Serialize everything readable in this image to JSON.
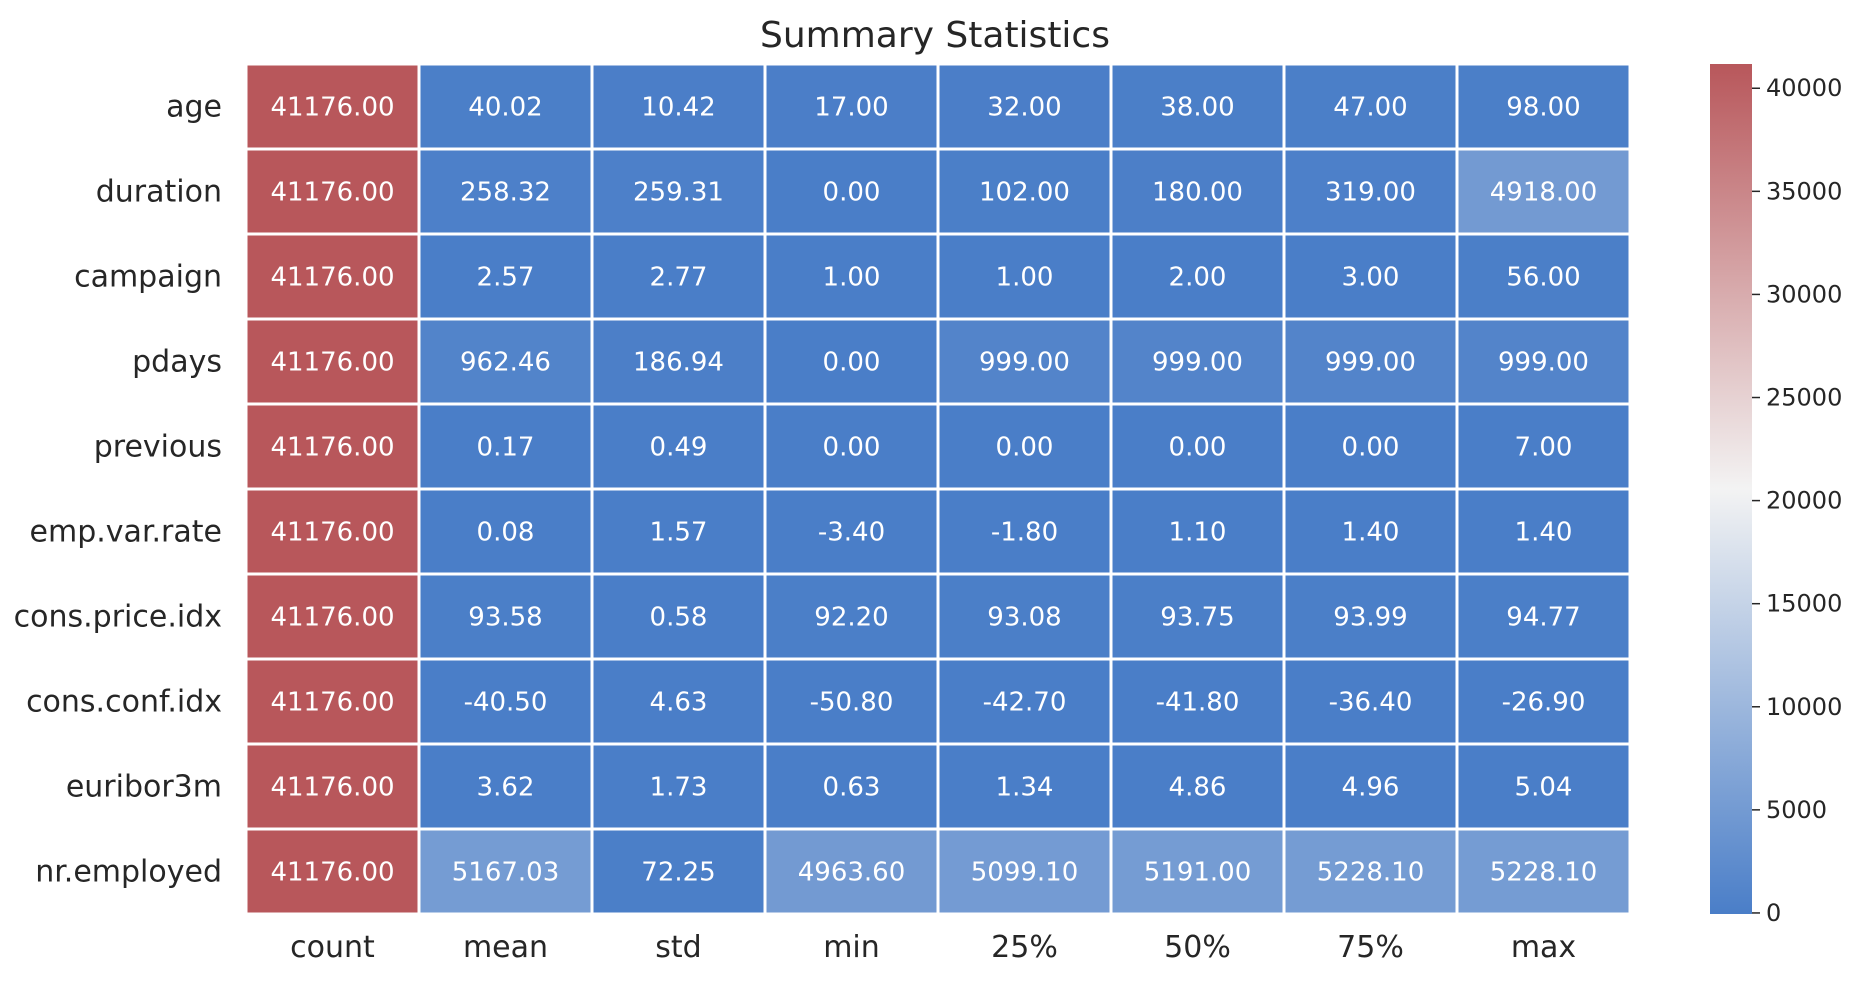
{
  "chart_data": {
    "type": "heatmap",
    "title": "Summary Statistics",
    "xlabel": "",
    "ylabel": "",
    "columns": [
      "count",
      "mean",
      "std",
      "min",
      "25%",
      "50%",
      "75%",
      "max"
    ],
    "rows": [
      "age",
      "duration",
      "campaign",
      "pdays",
      "previous",
      "emp.var.rate",
      "cons.price.idx",
      "cons.conf.idx",
      "euribor3m",
      "nr.employed"
    ],
    "values": [
      [
        41176.0,
        40.02,
        10.42,
        17.0,
        32.0,
        38.0,
        47.0,
        98.0
      ],
      [
        41176.0,
        258.32,
        259.31,
        0.0,
        102.0,
        180.0,
        319.0,
        4918.0
      ],
      [
        41176.0,
        2.57,
        2.77,
        1.0,
        1.0,
        2.0,
        3.0,
        56.0
      ],
      [
        41176.0,
        962.46,
        186.94,
        0.0,
        999.0,
        999.0,
        999.0,
        999.0
      ],
      [
        41176.0,
        0.17,
        0.49,
        0.0,
        0.0,
        0.0,
        0.0,
        7.0
      ],
      [
        41176.0,
        0.08,
        1.57,
        -3.4,
        -1.8,
        1.1,
        1.4,
        1.4
      ],
      [
        41176.0,
        93.58,
        0.58,
        92.2,
        93.08,
        93.75,
        93.99,
        94.77
      ],
      [
        41176.0,
        -40.5,
        4.63,
        -50.8,
        -42.7,
        -41.8,
        -36.4,
        -26.9
      ],
      [
        41176.0,
        3.62,
        1.73,
        0.63,
        1.34,
        4.86,
        4.96,
        5.04
      ],
      [
        41176.0,
        5167.03,
        72.25,
        4963.6,
        5099.1,
        5191.0,
        5228.1,
        5228.1
      ]
    ],
    "value_format": "2 decimals",
    "annotations": true,
    "colormap": {
      "name": "diverging blue-white-red",
      "low_color": "#4a7ec8",
      "mid_color": "#f3f3f3",
      "high_color": "#b8575b",
      "vmin": -50.8,
      "vmax": 41176.0
    },
    "colorbar": {
      "ticks": [
        0,
        5000,
        10000,
        15000,
        20000,
        25000,
        30000,
        35000,
        40000
      ],
      "placement": "right"
    },
    "cell_border_color": "#ffffff"
  }
}
